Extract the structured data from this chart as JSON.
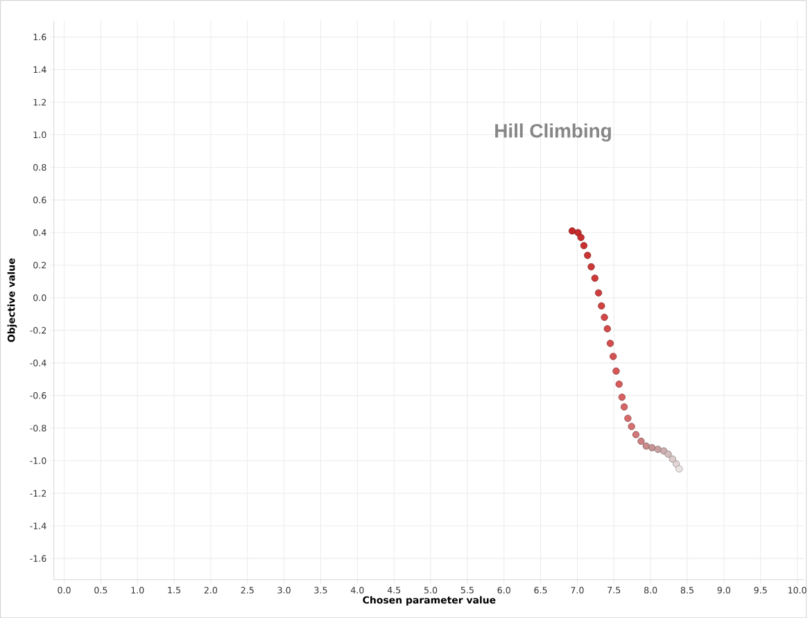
{
  "chart_data": {
    "type": "scatter",
    "title": "Hill Climbing",
    "xlabel": "Chosen parameter value",
    "ylabel": "Objective value",
    "x": [
      6.93,
      7.01,
      7.05,
      7.09,
      7.14,
      7.19,
      7.24,
      7.29,
      7.33,
      7.37,
      7.41,
      7.45,
      7.49,
      7.53,
      7.57,
      7.61,
      7.64,
      7.69,
      7.74,
      7.8,
      7.87,
      7.94,
      8.02,
      8.1,
      8.18,
      8.24,
      8.3,
      8.35,
      8.39
    ],
    "values": [
      0.41,
      0.4,
      0.37,
      0.32,
      0.26,
      0.19,
      0.12,
      0.03,
      -0.05,
      -0.12,
      -0.19,
      -0.28,
      -0.36,
      -0.45,
      -0.53,
      -0.61,
      -0.67,
      -0.74,
      -0.79,
      -0.84,
      -0.88,
      -0.91,
      -0.92,
      -0.93,
      -0.94,
      -0.96,
      -0.99,
      -1.02,
      -1.05
    ],
    "colors": [
      "#c42828",
      "#c62c2c",
      "#c82e2e",
      "#c93131",
      "#ca3434",
      "#cc3737",
      "#cd3a3a",
      "#cf3e3e",
      "#d04242",
      "#d24646",
      "#d34a4a",
      "#d44e4e",
      "#d55252",
      "#d65656",
      "#d75b5b",
      "#d76060",
      "#d76565",
      "#d66a6a",
      "#d47070",
      "#d07777",
      "#cc8080",
      "#c88a8a",
      "#c69494",
      "#c8a0a0",
      "#ccacac",
      "#d4bcbc",
      "#dccccc",
      "#e2d4d4",
      "#ebe2e2"
    ],
    "marker": "circle",
    "grid": true,
    "xlim": [
      -0.14,
      10.1
    ],
    "ylim": [
      -1.73,
      1.7
    ],
    "xticks": [
      {
        "value": 0,
        "label": "0.0"
      },
      {
        "value": 0.5,
        "label": "0.5"
      },
      {
        "value": 1,
        "label": "1.0"
      },
      {
        "value": 1.5,
        "label": "1.5"
      },
      {
        "value": 2,
        "label": "2.0"
      },
      {
        "value": 2.5,
        "label": "2.5"
      },
      {
        "value": 3,
        "label": "3.0"
      },
      {
        "value": 3.5,
        "label": "3.5"
      },
      {
        "value": 4,
        "label": "4.0"
      },
      {
        "value": 4.5,
        "label": "4.5"
      },
      {
        "value": 5,
        "label": "5.0"
      },
      {
        "value": 5.5,
        "label": "5.5"
      },
      {
        "value": 6,
        "label": "6.0"
      },
      {
        "value": 6.5,
        "label": "6.5"
      },
      {
        "value": 7,
        "label": "7.0"
      },
      {
        "value": 7.5,
        "label": "7.5"
      },
      {
        "value": 8,
        "label": "8.0"
      },
      {
        "value": 8.5,
        "label": "8.5"
      },
      {
        "value": 9,
        "label": "9.0"
      },
      {
        "value": 9.5,
        "label": "9.5"
      },
      {
        "value": 10,
        "label": "10.0"
      }
    ],
    "yticks": [
      {
        "value": -1.6,
        "label": "-1.6"
      },
      {
        "value": -1.4,
        "label": "-1.4"
      },
      {
        "value": -1.2,
        "label": "-1.2"
      },
      {
        "value": -1,
        "label": "-1.0"
      },
      {
        "value": -0.8,
        "label": "-0.8"
      },
      {
        "value": -0.6,
        "label": "-0.6"
      },
      {
        "value": -0.4,
        "label": "-0.4"
      },
      {
        "value": -0.2,
        "label": "-0.2"
      },
      {
        "value": 0,
        "label": "0.0"
      },
      {
        "value": 0.2,
        "label": "0.2"
      },
      {
        "value": 0.4,
        "label": "0.4"
      },
      {
        "value": 0.6,
        "label": "0.6"
      },
      {
        "value": 0.8,
        "label": "0.8"
      },
      {
        "value": 1,
        "label": "1.0"
      },
      {
        "value": 1.2,
        "label": "1.2"
      },
      {
        "value": 1.4,
        "label": "1.4"
      },
      {
        "value": 1.6,
        "label": "1.6"
      }
    ]
  }
}
